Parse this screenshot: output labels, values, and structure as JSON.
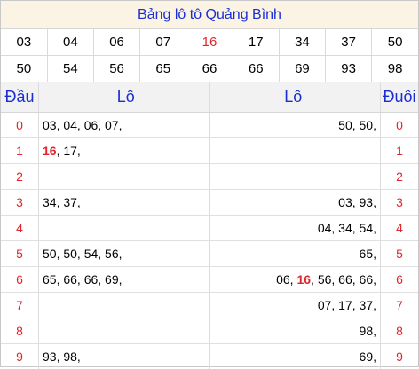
{
  "title": "Bảng lô tô Quảng Bình",
  "numbers": [
    [
      {
        "v": "03"
      },
      {
        "v": "04"
      },
      {
        "v": "06"
      },
      {
        "v": "07"
      },
      {
        "v": "16",
        "red": true
      },
      {
        "v": "17"
      },
      {
        "v": "34"
      },
      {
        "v": "37"
      },
      {
        "v": "50"
      }
    ],
    [
      {
        "v": "50"
      },
      {
        "v": "54"
      },
      {
        "v": "56"
      },
      {
        "v": "65"
      },
      {
        "v": "66"
      },
      {
        "v": "66"
      },
      {
        "v": "69"
      },
      {
        "v": "93"
      },
      {
        "v": "98"
      }
    ]
  ],
  "headers": {
    "dau": "Đầu",
    "lo_left": "Lô",
    "lo_right": "Lô",
    "duoi": "Đuôi"
  },
  "rows": [
    {
      "dau": "0",
      "left": [
        {
          "t": "03, 04, 06, 07,"
        }
      ],
      "right": [
        {
          "t": "50, 50,"
        }
      ],
      "duoi": "0"
    },
    {
      "dau": "1",
      "left": [
        {
          "t": "16",
          "hl": true
        },
        {
          "t": ", 17,"
        }
      ],
      "right": [],
      "duoi": "1"
    },
    {
      "dau": "2",
      "left": [],
      "right": [],
      "duoi": "2"
    },
    {
      "dau": "3",
      "left": [
        {
          "t": "34, 37,"
        }
      ],
      "right": [
        {
          "t": "03, 93,"
        }
      ],
      "duoi": "3"
    },
    {
      "dau": "4",
      "left": [],
      "right": [
        {
          "t": "04, 34, 54,"
        }
      ],
      "duoi": "4"
    },
    {
      "dau": "5",
      "left": [
        {
          "t": "50, 50, 54, 56,"
        }
      ],
      "right": [
        {
          "t": "65,"
        }
      ],
      "duoi": "5"
    },
    {
      "dau": "6",
      "left": [
        {
          "t": "65, 66, 66, 69,"
        }
      ],
      "right": [
        {
          "t": "06, "
        },
        {
          "t": "16",
          "hl": true
        },
        {
          "t": ", 56, 66, 66,"
        }
      ],
      "duoi": "6"
    },
    {
      "dau": "7",
      "left": [],
      "right": [
        {
          "t": "07, 17, 37,"
        }
      ],
      "duoi": "7"
    },
    {
      "dau": "8",
      "left": [],
      "right": [
        {
          "t": "98,"
        }
      ],
      "duoi": "8"
    },
    {
      "dau": "9",
      "left": [
        {
          "t": "93, 98,"
        }
      ],
      "right": [
        {
          "t": "69,"
        }
      ],
      "duoi": "9"
    }
  ]
}
